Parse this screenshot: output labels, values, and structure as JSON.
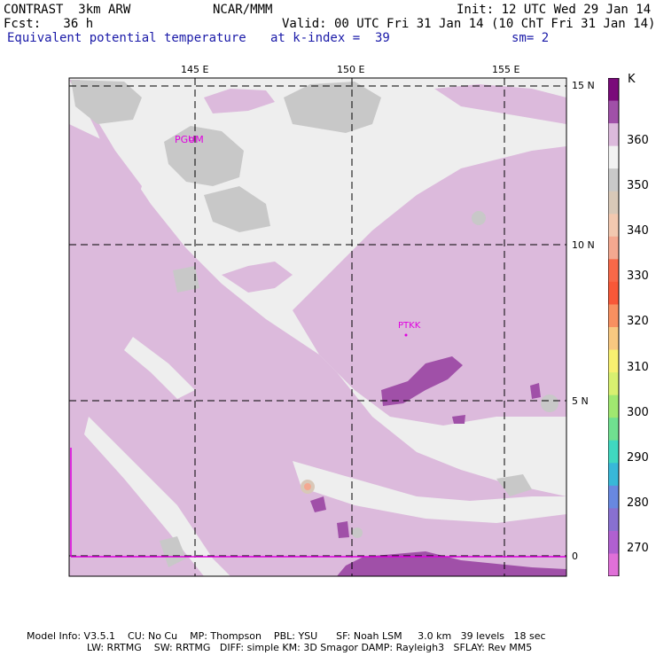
{
  "header": {
    "model": "CONTRAST  3km ARW",
    "center": "NCAR/MMM",
    "init": "Init: 12 UTC Wed 29 Jan 14",
    "fcst": "Fcst:   36 h",
    "valid": "Valid: 00 UTC Fri 31 Jan 14 (10 ChT Fri 31 Jan 14)",
    "field": "Equivalent potential temperature",
    "level": "at k-index =  39",
    "smooth": "sm= 2"
  },
  "map": {
    "lon_labels": [
      "145 E",
      "150 E",
      "155 E"
    ],
    "lat_labels": [
      "15 N",
      "10 N",
      "5 N",
      "0"
    ],
    "stations": [
      {
        "id": "PGUM"
      },
      {
        "id": "PTKK"
      }
    ],
    "colors": {
      "background": "#eeeeee",
      "c360": "#dcbadc",
      "c350": "#c8c8c8",
      "c365": "#a050a8",
      "station": "#e000e0"
    }
  },
  "colorbar": {
    "unit": "K",
    "labels": [
      "360",
      "350",
      "340",
      "330",
      "320",
      "310",
      "300",
      "290",
      "280",
      "270"
    ],
    "colors": [
      "#7a0a7a",
      "#a050a8",
      "#dcbadc",
      "#f2f2f2",
      "#c8c8c8",
      "#d8c8b8",
      "#f2c8b0",
      "#f4a890",
      "#f86848",
      "#f85838",
      "#f89060",
      "#f8c880",
      "#f8f070",
      "#d8f070",
      "#a0e870",
      "#70e090",
      "#40d8c0",
      "#38b8d8",
      "#6888e0",
      "#8870d0",
      "#b060d0",
      "#e070d8"
    ]
  },
  "footer": {
    "line1": "Model Info: V3.5.1    CU: No Cu    MP: Thompson    PBL: YSU      SF: Noah LSM     3.0 km   39 levels   18 sec",
    "line2": "LW: RRTMG    SW: RRTMG   DIFF: simple KM: 3D Smagor DAMP: Rayleigh3   SFLAY: Rev MM5"
  }
}
